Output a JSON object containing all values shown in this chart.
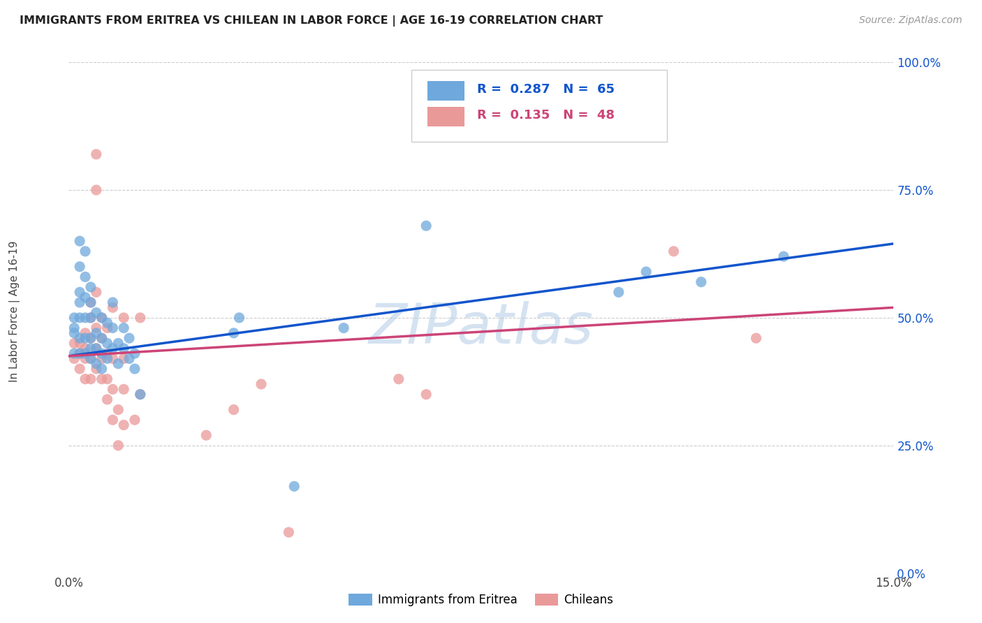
{
  "title": "IMMIGRANTS FROM ERITREA VS CHILEAN IN LABOR FORCE | AGE 16-19 CORRELATION CHART",
  "source": "Source: ZipAtlas.com",
  "ylabel": "In Labor Force | Age 16-19",
  "xmin": 0.0,
  "xmax": 0.15,
  "ymin": 0.0,
  "ymax": 1.0,
  "ytick_labels": [
    "0.0%",
    "25.0%",
    "50.0%",
    "75.0%",
    "100.0%"
  ],
  "ytick_values": [
    0.0,
    0.25,
    0.5,
    0.75,
    1.0
  ],
  "blue_color": "#6fa8dc",
  "pink_color": "#ea9999",
  "blue_line_color": "#1155cc",
  "pink_line_color": "#cc4477",
  "watermark": "ZIPatlas",
  "watermark_color": "#b8cfe8",
  "background_color": "#ffffff",
  "blue_scatter": [
    [
      0.001,
      0.43
    ],
    [
      0.001,
      0.47
    ],
    [
      0.001,
      0.48
    ],
    [
      0.001,
      0.5
    ],
    [
      0.002,
      0.43
    ],
    [
      0.002,
      0.46
    ],
    [
      0.002,
      0.5
    ],
    [
      0.002,
      0.53
    ],
    [
      0.002,
      0.55
    ],
    [
      0.002,
      0.6
    ],
    [
      0.002,
      0.65
    ],
    [
      0.003,
      0.43
    ],
    [
      0.003,
      0.46
    ],
    [
      0.003,
      0.5
    ],
    [
      0.003,
      0.54
    ],
    [
      0.003,
      0.58
    ],
    [
      0.003,
      0.63
    ],
    [
      0.004,
      0.42
    ],
    [
      0.004,
      0.44
    ],
    [
      0.004,
      0.46
    ],
    [
      0.004,
      0.5
    ],
    [
      0.004,
      0.53
    ],
    [
      0.004,
      0.56
    ],
    [
      0.005,
      0.41
    ],
    [
      0.005,
      0.44
    ],
    [
      0.005,
      0.47
    ],
    [
      0.005,
      0.51
    ],
    [
      0.006,
      0.4
    ],
    [
      0.006,
      0.43
    ],
    [
      0.006,
      0.46
    ],
    [
      0.006,
      0.5
    ],
    [
      0.007,
      0.42
    ],
    [
      0.007,
      0.45
    ],
    [
      0.007,
      0.49
    ],
    [
      0.008,
      0.44
    ],
    [
      0.008,
      0.48
    ],
    [
      0.008,
      0.53
    ],
    [
      0.009,
      0.41
    ],
    [
      0.009,
      0.45
    ],
    [
      0.01,
      0.44
    ],
    [
      0.01,
      0.48
    ],
    [
      0.011,
      0.42
    ],
    [
      0.011,
      0.46
    ],
    [
      0.012,
      0.4
    ],
    [
      0.012,
      0.43
    ],
    [
      0.013,
      0.35
    ],
    [
      0.03,
      0.47
    ],
    [
      0.031,
      0.5
    ],
    [
      0.041,
      0.17
    ],
    [
      0.05,
      0.48
    ],
    [
      0.065,
      0.68
    ],
    [
      0.1,
      0.55
    ],
    [
      0.105,
      0.59
    ],
    [
      0.115,
      0.57
    ],
    [
      0.13,
      0.62
    ]
  ],
  "pink_scatter": [
    [
      0.001,
      0.42
    ],
    [
      0.001,
      0.45
    ],
    [
      0.002,
      0.4
    ],
    [
      0.002,
      0.43
    ],
    [
      0.002,
      0.45
    ],
    [
      0.003,
      0.38
    ],
    [
      0.003,
      0.42
    ],
    [
      0.003,
      0.44
    ],
    [
      0.003,
      0.47
    ],
    [
      0.004,
      0.38
    ],
    [
      0.004,
      0.42
    ],
    [
      0.004,
      0.46
    ],
    [
      0.004,
      0.5
    ],
    [
      0.004,
      0.53
    ],
    [
      0.005,
      0.4
    ],
    [
      0.005,
      0.44
    ],
    [
      0.005,
      0.48
    ],
    [
      0.005,
      0.55
    ],
    [
      0.005,
      0.75
    ],
    [
      0.005,
      0.82
    ],
    [
      0.006,
      0.38
    ],
    [
      0.006,
      0.42
    ],
    [
      0.006,
      0.46
    ],
    [
      0.006,
      0.5
    ],
    [
      0.007,
      0.34
    ],
    [
      0.007,
      0.38
    ],
    [
      0.007,
      0.43
    ],
    [
      0.007,
      0.48
    ],
    [
      0.008,
      0.3
    ],
    [
      0.008,
      0.36
    ],
    [
      0.008,
      0.42
    ],
    [
      0.008,
      0.52
    ],
    [
      0.009,
      0.25
    ],
    [
      0.009,
      0.32
    ],
    [
      0.01,
      0.29
    ],
    [
      0.01,
      0.36
    ],
    [
      0.01,
      0.42
    ],
    [
      0.01,
      0.5
    ],
    [
      0.012,
      0.3
    ],
    [
      0.013,
      0.35
    ],
    [
      0.013,
      0.5
    ],
    [
      0.025,
      0.27
    ],
    [
      0.03,
      0.32
    ],
    [
      0.035,
      0.37
    ],
    [
      0.04,
      0.08
    ],
    [
      0.06,
      0.38
    ],
    [
      0.065,
      0.35
    ],
    [
      0.11,
      0.63
    ],
    [
      0.125,
      0.46
    ]
  ],
  "blue_trendline": [
    [
      0.0,
      0.425
    ],
    [
      0.15,
      0.645
    ]
  ],
  "pink_trendline": [
    [
      0.0,
      0.425
    ],
    [
      0.15,
      0.52
    ]
  ]
}
